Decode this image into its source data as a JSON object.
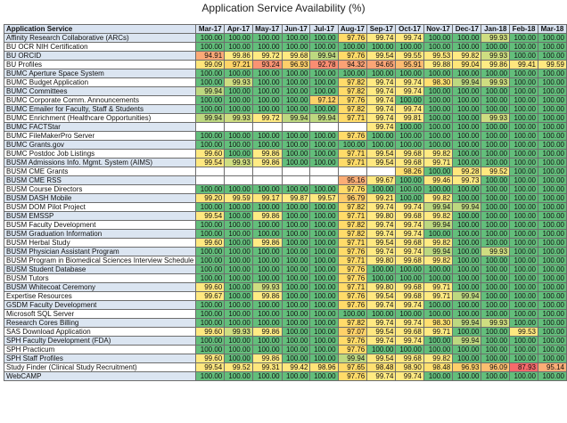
{
  "chart_data": {
    "type": "table",
    "title": "Application Service Availability (%)",
    "header_label": "Application Service",
    "months": [
      "Mar-17",
      "Apr-17",
      "May-17",
      "Jun-17",
      "Jul-17",
      "Aug-17",
      "Sep-17",
      "Oct-17",
      "Nov-17",
      "Dec-17",
      "Jan-18",
      "Feb-18",
      "Mar-18"
    ],
    "color_scale": {
      "green": "#63be7b",
      "yellow": "#ffeb84",
      "orange": "#fbaa77",
      "red": "#f8696b"
    },
    "rows": [
      {
        "service": "Affinity Research Collaborative (ARCs)",
        "values": [
          100.0,
          100.0,
          100.0,
          100.0,
          100.0,
          97.76,
          99.74,
          99.74,
          100.0,
          100.0,
          99.93,
          100.0,
          100.0
        ]
      },
      {
        "service": "BU OCR NIH Certification",
        "values": [
          100.0,
          100.0,
          100.0,
          100.0,
          100.0,
          100.0,
          100.0,
          100.0,
          100.0,
          100.0,
          100.0,
          100.0,
          100.0
        ]
      },
      {
        "service": "BU ORCID",
        "values": [
          94.91,
          99.86,
          99.72,
          99.68,
          99.94,
          97.76,
          99.54,
          99.55,
          99.53,
          99.82,
          99.93,
          100.0,
          100.0
        ]
      },
      {
        "service": "BU Profiles",
        "values": [
          99.09,
          97.21,
          93.24,
          96.93,
          92.78,
          94.32,
          94.65,
          95.91,
          99.88,
          99.04,
          99.86,
          99.41,
          99.59
        ]
      },
      {
        "service": "BUMC Aperture Space System",
        "values": [
          100.0,
          100.0,
          100.0,
          100.0,
          100.0,
          100.0,
          100.0,
          100.0,
          100.0,
          100.0,
          100.0,
          100.0,
          100.0
        ]
      },
      {
        "service": "BUMC Budget Application",
        "values": [
          100.0,
          99.93,
          100.0,
          100.0,
          100.0,
          97.82,
          99.74,
          99.74,
          98.3,
          99.94,
          99.93,
          100.0,
          100.0
        ]
      },
      {
        "service": "BUMC Committees",
        "values": [
          99.94,
          100.0,
          100.0,
          100.0,
          100.0,
          97.82,
          99.74,
          99.74,
          100.0,
          100.0,
          100.0,
          100.0,
          100.0
        ]
      },
      {
        "service": "BUMC Corporate Comm. Announcements",
        "values": [
          100.0,
          100.0,
          100.0,
          100.0,
          97.12,
          97.76,
          99.74,
          100.0,
          100.0,
          100.0,
          100.0,
          100.0,
          100.0
        ]
      },
      {
        "service": "BUMC Emailer for Faculty, Staff & Students",
        "values": [
          100.0,
          100.0,
          100.0,
          100.0,
          100.0,
          97.82,
          99.74,
          99.74,
          100.0,
          100.0,
          100.0,
          100.0,
          100.0
        ]
      },
      {
        "service": "BUMC Enrichment (Healthcare Opportunities)",
        "values": [
          99.94,
          99.93,
          99.72,
          99.94,
          99.94,
          97.71,
          99.74,
          99.81,
          100.0,
          100.0,
          99.93,
          100.0,
          100.0
        ]
      },
      {
        "service": "BUMC FACTStar",
        "values": [
          null,
          null,
          null,
          null,
          null,
          null,
          99.74,
          100.0,
          100.0,
          100.0,
          100.0,
          100.0,
          100.0
        ]
      },
      {
        "service": "BUMC FileMakerPro Server",
        "values": [
          100.0,
          100.0,
          100.0,
          100.0,
          100.0,
          97.76,
          100.0,
          100.0,
          100.0,
          100.0,
          100.0,
          100.0,
          100.0
        ]
      },
      {
        "service": "BUMC Grants.gov",
        "values": [
          100.0,
          100.0,
          100.0,
          100.0,
          100.0,
          100.0,
          100.0,
          100.0,
          100.0,
          100.0,
          100.0,
          100.0,
          100.0
        ]
      },
      {
        "service": "BUMC Postdoc Job Listings",
        "values": [
          99.6,
          100.0,
          99.86,
          100.0,
          100.0,
          97.71,
          99.54,
          99.68,
          99.82,
          100.0,
          100.0,
          100.0,
          100.0
        ]
      },
      {
        "service": "BUSM Admissions Info. Mgmt. System (AIMS)",
        "values": [
          99.54,
          99.93,
          99.86,
          100.0,
          100.0,
          97.71,
          99.54,
          99.68,
          99.71,
          100.0,
          100.0,
          100.0,
          100.0
        ]
      },
      {
        "service": "BUSM CME Grants",
        "values": [
          null,
          null,
          null,
          null,
          null,
          null,
          null,
          98.26,
          100.0,
          99.28,
          99.52,
          100.0,
          100.0
        ]
      },
      {
        "service": "BUSM CME RSS",
        "values": [
          null,
          null,
          null,
          null,
          null,
          95.16,
          99.67,
          100.0,
          99.46,
          99.73,
          100.0,
          100.0,
          100.0
        ]
      },
      {
        "service": "BUSM Course Directors",
        "values": [
          100.0,
          100.0,
          100.0,
          100.0,
          100.0,
          97.76,
          100.0,
          100.0,
          100.0,
          100.0,
          100.0,
          100.0,
          100.0
        ]
      },
      {
        "service": "BUSM DASH Mobile",
        "values": [
          99.2,
          99.59,
          99.17,
          99.87,
          99.57,
          96.79,
          99.21,
          100.0,
          99.82,
          100.0,
          100.0,
          100.0,
          100.0
        ]
      },
      {
        "service": "BUSM DOM Pilot Project",
        "values": [
          100.0,
          100.0,
          100.0,
          100.0,
          100.0,
          97.82,
          99.74,
          99.74,
          99.94,
          99.94,
          100.0,
          100.0,
          100.0
        ]
      },
      {
        "service": "BUSM EMSSP",
        "values": [
          99.54,
          100.0,
          99.86,
          100.0,
          100.0,
          97.71,
          99.8,
          99.68,
          99.82,
          100.0,
          100.0,
          100.0,
          100.0
        ]
      },
      {
        "service": "BUSM Faculty Development",
        "values": [
          100.0,
          100.0,
          100.0,
          100.0,
          100.0,
          97.82,
          99.74,
          99.74,
          99.94,
          100.0,
          100.0,
          100.0,
          100.0
        ]
      },
      {
        "service": "BUSM Graduation Information",
        "values": [
          100.0,
          100.0,
          100.0,
          100.0,
          100.0,
          97.82,
          99.74,
          99.74,
          100.0,
          100.0,
          100.0,
          100.0,
          100.0
        ]
      },
      {
        "service": "BUSM Herbal Study",
        "values": [
          99.6,
          100.0,
          99.86,
          100.0,
          100.0,
          97.71,
          99.54,
          99.68,
          99.82,
          100.0,
          100.0,
          100.0,
          100.0
        ]
      },
      {
        "service": "BUSM Physician Assistant Program",
        "values": [
          100.0,
          100.0,
          100.0,
          100.0,
          100.0,
          97.76,
          99.74,
          99.74,
          99.94,
          100.0,
          99.93,
          100.0,
          100.0
        ]
      },
      {
        "service": "BUSM Program in Biomedical Sciences Interview Schedule",
        "values": [
          100.0,
          100.0,
          100.0,
          100.0,
          100.0,
          97.71,
          99.8,
          99.68,
          99.82,
          100.0,
          100.0,
          100.0,
          100.0
        ]
      },
      {
        "service": "BUSM Student Database",
        "values": [
          100.0,
          100.0,
          100.0,
          100.0,
          100.0,
          97.76,
          100.0,
          100.0,
          100.0,
          100.0,
          100.0,
          100.0,
          100.0
        ]
      },
      {
        "service": "BUSM Tutors",
        "values": [
          100.0,
          100.0,
          100.0,
          100.0,
          100.0,
          97.76,
          100.0,
          100.0,
          100.0,
          100.0,
          100.0,
          100.0,
          100.0
        ]
      },
      {
        "service": "BUSM Whitecoat Ceremony",
        "values": [
          99.6,
          100.0,
          99.93,
          100.0,
          100.0,
          97.71,
          99.8,
          99.68,
          99.71,
          100.0,
          100.0,
          100.0,
          100.0
        ]
      },
      {
        "service": "Expertise Resources",
        "values": [
          99.67,
          100.0,
          99.86,
          100.0,
          100.0,
          97.76,
          99.54,
          99.68,
          99.71,
          99.94,
          100.0,
          100.0,
          100.0
        ]
      },
      {
        "service": "GSDM Faculty Development",
        "values": [
          100.0,
          100.0,
          100.0,
          100.0,
          100.0,
          97.76,
          99.74,
          99.74,
          100.0,
          100.0,
          100.0,
          100.0,
          100.0
        ]
      },
      {
        "service": "Microsoft SQL Server",
        "values": [
          100.0,
          100.0,
          100.0,
          100.0,
          100.0,
          100.0,
          100.0,
          100.0,
          100.0,
          100.0,
          100.0,
          100.0,
          100.0
        ]
      },
      {
        "service": "Research Cores Billing",
        "values": [
          100.0,
          100.0,
          100.0,
          100.0,
          100.0,
          97.82,
          99.74,
          99.74,
          98.3,
          99.94,
          99.93,
          100.0,
          100.0
        ]
      },
      {
        "service": "SAS Download Application",
        "values": [
          99.6,
          99.93,
          99.86,
          100.0,
          100.0,
          97.07,
          99.54,
          99.68,
          99.71,
          100.0,
          100.0,
          99.53,
          100.0
        ]
      },
      {
        "service": "SPH Faculty Development (FDA)",
        "values": [
          100.0,
          100.0,
          100.0,
          100.0,
          100.0,
          97.76,
          99.74,
          99.74,
          100.0,
          99.94,
          100.0,
          100.0,
          100.0
        ]
      },
      {
        "service": "SPH Practicum",
        "values": [
          100.0,
          100.0,
          100.0,
          100.0,
          100.0,
          97.76,
          100.0,
          100.0,
          100.0,
          100.0,
          100.0,
          100.0,
          100.0
        ]
      },
      {
        "service": "SPH Staff Profiles",
        "values": [
          99.6,
          100.0,
          99.86,
          100.0,
          100.0,
          99.94,
          99.54,
          99.68,
          99.82,
          100.0,
          100.0,
          100.0,
          100.0
        ]
      },
      {
        "service": "Study Finder (Clinical Study Recruitment)",
        "values": [
          99.54,
          99.52,
          99.31,
          99.42,
          98.96,
          97.65,
          98.48,
          98.9,
          98.48,
          96.93,
          96.09,
          87.93,
          95.14
        ]
      },
      {
        "service": "WebCAMP",
        "values": [
          100.0,
          100.0,
          100.0,
          100.0,
          100.0,
          97.76,
          99.74,
          99.74,
          100.0,
          100.0,
          100.0,
          100.0,
          100.0
        ]
      }
    ]
  }
}
